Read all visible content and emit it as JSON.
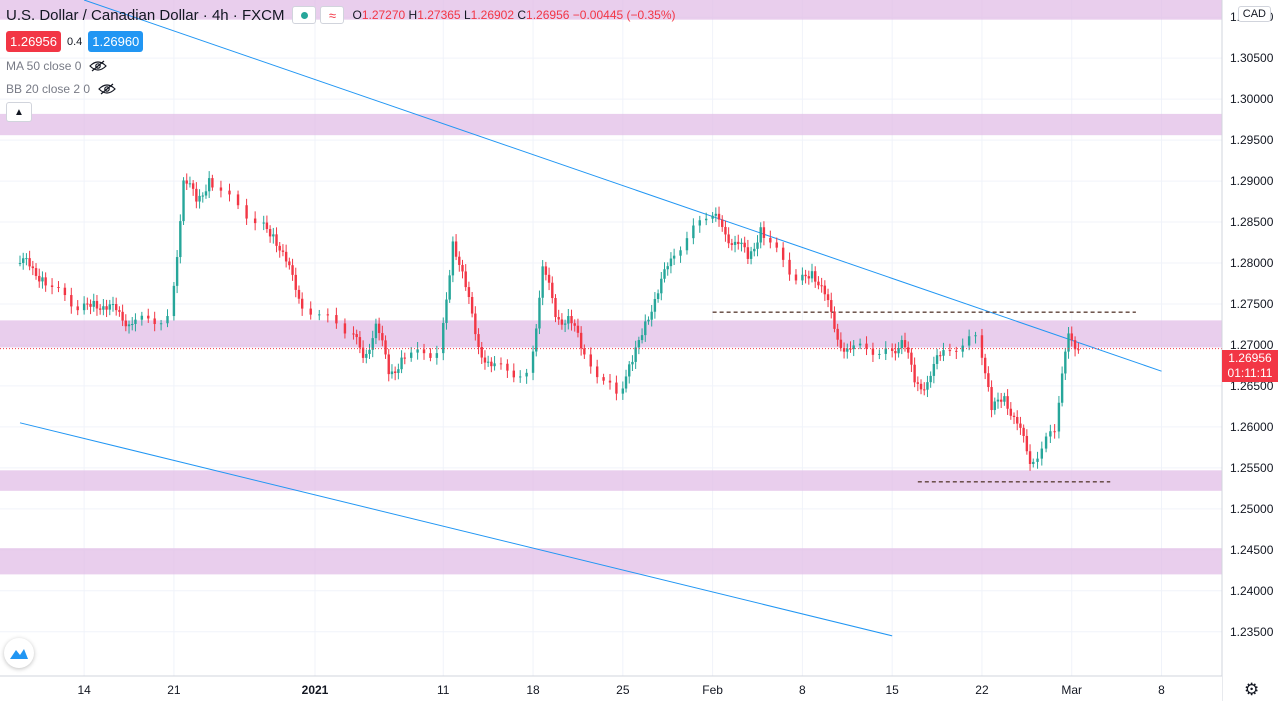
{
  "header": {
    "symbol": "U.S. Dollar / Canadian Dollar",
    "interval": "4h",
    "exchange": "FXCM",
    "o_label": "O",
    "o_value": "1.27270",
    "h_label": "H",
    "h_value": "1.27365",
    "l_label": "L",
    "l_value": "1.26902",
    "c_label": "C",
    "c_value": "1.26956",
    "change": "−0.00445 (−0.35%)",
    "bid": "1.26956",
    "spread": "0.4",
    "ask": "1.26960"
  },
  "indicators": [
    {
      "label": "MA 50 close 0"
    },
    {
      "label": "BB 20 close 2 0"
    }
  ],
  "currency_badge": "CAD",
  "last_price": {
    "value": "1.26956",
    "countdown": "01:11:11"
  },
  "colors": {
    "up": "#26a69a",
    "down": "#f23645",
    "zone": "#e1bee7",
    "trendline": "#2196f3",
    "level_line": "#5d4037",
    "grid": "#f0f3fa",
    "text": "#131722"
  },
  "icons": {
    "eye": "eye-off-icon",
    "collapse": "chevron-up-icon",
    "settings": "gear-icon",
    "logo": "tradingview-logo-icon"
  },
  "chart_data": {
    "type": "candlestick",
    "y_axis_ticks": [
      "1.31000",
      "1.30500",
      "1.30000",
      "1.29500",
      "1.29000",
      "1.28500",
      "1.28000",
      "1.27500",
      "1.27000",
      "1.26500",
      "1.26000",
      "1.25500",
      "1.25000",
      "1.24500",
      "1.24000",
      "1.23500"
    ],
    "x_axis_ticks": [
      "14",
      "21",
      "2021",
      "11",
      "18",
      "25",
      "Feb",
      "8",
      "15",
      "22",
      "Mar",
      "8"
    ],
    "ylim": [
      1.2296,
      1.3121
    ],
    "x_range": [
      "2020-12-09",
      "2021-03-11"
    ],
    "last_close": 1.26956,
    "zones": [
      {
        "low": 1.3097,
        "high": 1.3121
      },
      {
        "low": 1.2956,
        "high": 1.2982
      },
      {
        "low": 1.2697,
        "high": 1.273
      },
      {
        "low": 1.2522,
        "high": 1.2547
      },
      {
        "low": 1.242,
        "high": 1.2452
      }
    ],
    "trendlines": [
      {
        "from": [
          "2020-12-14",
          1.3121
        ],
        "to": [
          "2021-03-08",
          1.2668
        ]
      },
      {
        "from": [
          "2020-12-09",
          1.2605
        ],
        "to": [
          "2021-02-15",
          1.2345
        ]
      }
    ],
    "horizontal_levels": [
      {
        "price": 1.274,
        "from": "2021-02-01",
        "to": "2021-03-06"
      },
      {
        "price": 1.2533,
        "from": "2021-02-17",
        "to": "2021-03-04"
      }
    ],
    "candles_close": [
      [
        "2020-12-09",
        1.28
      ],
      [
        "2020-12-10",
        1.278
      ],
      [
        "2020-12-11",
        1.2745
      ],
      [
        "2020-12-14",
        1.2755
      ],
      [
        "2020-12-15",
        1.274
      ],
      [
        "2020-12-16",
        1.2745
      ],
      [
        "2020-12-17",
        1.272
      ],
      [
        "2020-12-18",
        1.273
      ],
      [
        "2020-12-21",
        1.2895
      ],
      [
        "2020-12-22",
        1.288
      ],
      [
        "2020-12-23",
        1.29
      ],
      [
        "2020-12-24",
        1.285
      ],
      [
        "2020-12-28",
        1.2835
      ],
      [
        "2020-12-29",
        1.28
      ],
      [
        "2020-12-30",
        1.276
      ],
      [
        "2020-12-31",
        1.272
      ],
      [
        "2021-01-04",
        1.269
      ],
      [
        "2021-01-05",
        1.272
      ],
      [
        "2021-01-06",
        1.267
      ],
      [
        "2021-01-07",
        1.268
      ],
      [
        "2021-01-08",
        1.269
      ],
      [
        "2021-01-11",
        1.2825
      ],
      [
        "2021-01-12",
        1.277
      ],
      [
        "2021-01-13",
        1.27
      ],
      [
        "2021-01-14",
        1.267
      ],
      [
        "2021-01-15",
        1.266
      ],
      [
        "2021-01-18",
        1.279
      ],
      [
        "2021-01-19",
        1.274
      ],
      [
        "2021-01-20",
        1.273
      ],
      [
        "2021-01-21",
        1.27
      ],
      [
        "2021-01-22",
        1.264
      ],
      [
        "2021-01-25",
        1.268
      ],
      [
        "2021-01-26",
        1.273
      ],
      [
        "2021-01-27",
        1.276
      ],
      [
        "2021-01-28",
        1.281
      ],
      [
        "2021-01-29",
        1.286
      ],
      [
        "2021-02-01",
        1.285
      ],
      [
        "2021-02-02",
        1.282
      ],
      [
        "2021-02-03",
        1.281
      ],
      [
        "2021-02-04",
        1.284
      ],
      [
        "2021-02-05",
        1.278
      ],
      [
        "2021-02-08",
        1.279
      ],
      [
        "2021-02-09",
        1.276
      ],
      [
        "2021-02-10",
        1.271
      ],
      [
        "2021-02-11",
        1.269
      ],
      [
        "2021-02-12",
        1.269
      ],
      [
        "2021-02-15",
        1.27
      ],
      [
        "2021-02-16",
        1.266
      ],
      [
        "2021-02-17",
        1.265
      ],
      [
        "2021-02-18",
        1.269
      ],
      [
        "2021-02-19",
        1.271
      ],
      [
        "2021-02-22",
        1.262
      ],
      [
        "2021-02-23",
        1.264
      ],
      [
        "2021-02-24",
        1.26
      ],
      [
        "2021-02-25",
        1.256
      ],
      [
        "2021-02-26",
        1.26
      ],
      [
        "2021-02-28",
        1.272
      ],
      [
        "2021-03-01",
        1.26956
      ]
    ],
    "extremes": {
      "high": 1.2957,
      "low": 1.2471
    }
  }
}
